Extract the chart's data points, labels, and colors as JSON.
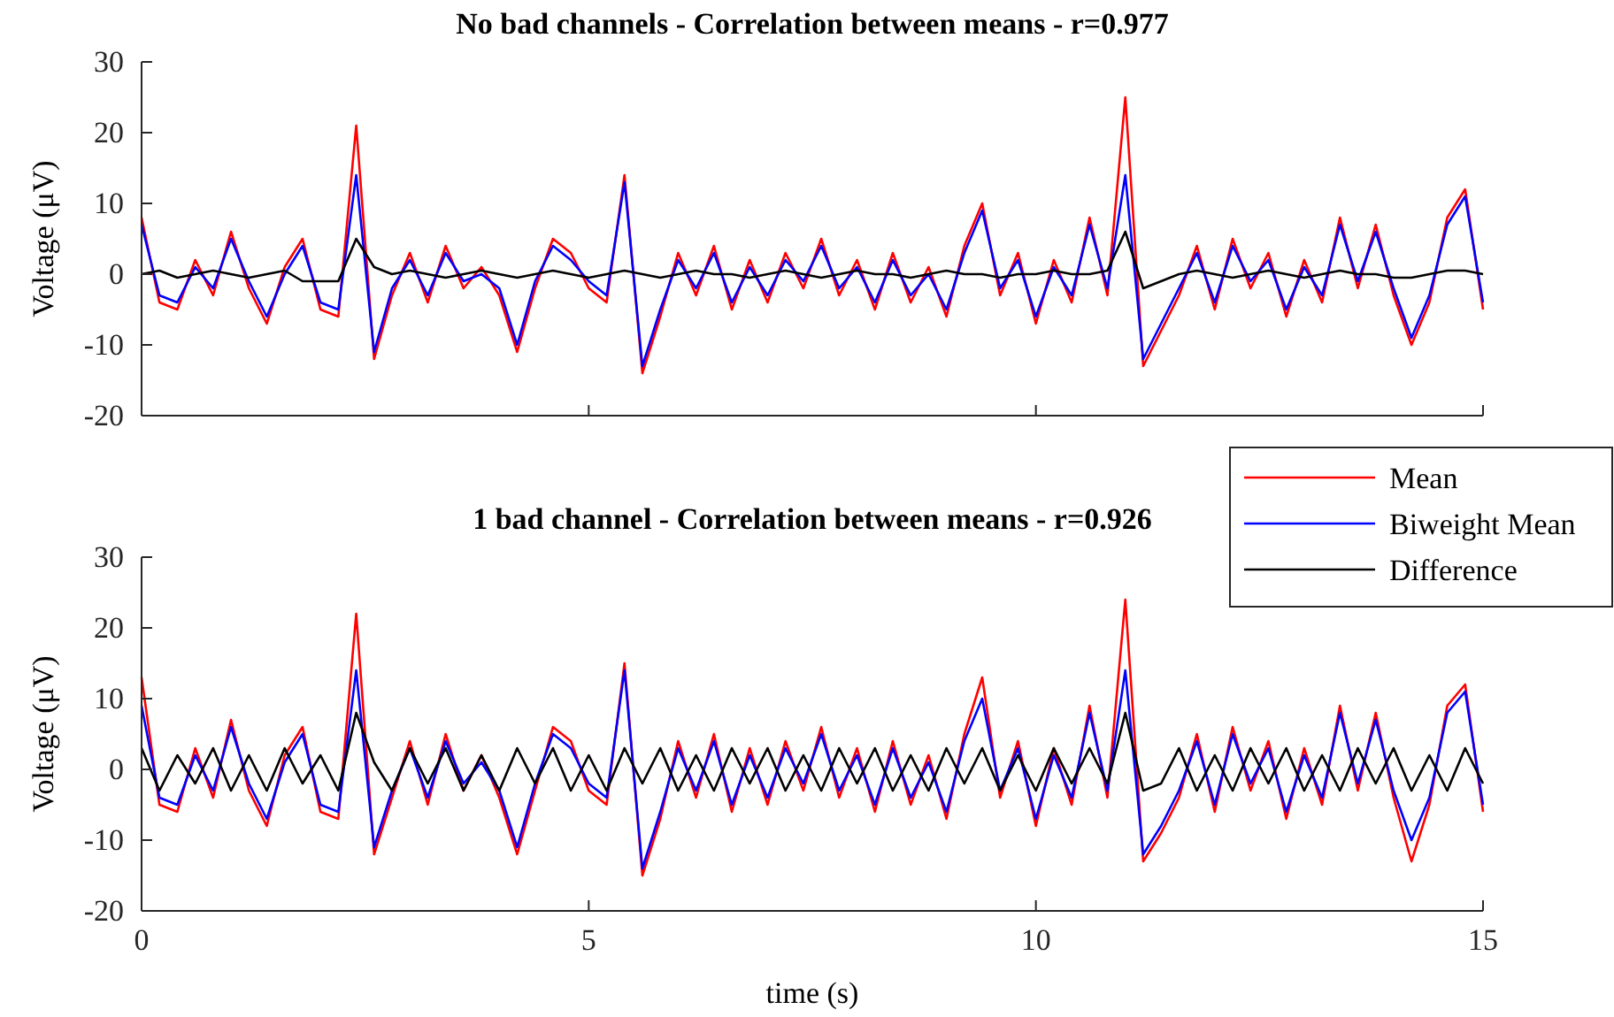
{
  "chart_data": [
    {
      "type": "line",
      "title": "No bad channels - Correlation between means - r=0.977",
      "ylabel": "Voltage (μV)",
      "x": [
        0,
        0.2,
        0.4,
        0.6,
        0.8,
        1,
        1.2,
        1.4,
        1.6,
        1.8,
        2,
        2.2,
        2.4,
        2.6,
        2.8,
        3,
        3.2,
        3.4,
        3.6,
        3.8,
        4,
        4.2,
        4.4,
        4.6,
        4.8,
        5,
        5.2,
        5.4,
        5.6,
        5.8,
        6,
        6.2,
        6.4,
        6.6,
        6.8,
        7,
        7.2,
        7.4,
        7.6,
        7.8,
        8,
        8.2,
        8.4,
        8.6,
        8.8,
        9,
        9.2,
        9.4,
        9.6,
        9.8,
        10,
        10.2,
        10.4,
        10.6,
        10.8,
        11,
        11.2,
        11.4,
        11.6,
        11.8,
        12,
        12.2,
        12.4,
        12.6,
        12.8,
        13,
        13.2,
        13.4,
        13.6,
        13.8,
        14,
        14.2,
        14.4,
        14.6,
        14.8,
        15
      ],
      "xlim": [
        0,
        15
      ],
      "xticks": [
        0,
        5,
        10,
        15
      ],
      "ylim": [
        -20,
        30
      ],
      "yticks": [
        -20,
        -10,
        0,
        10,
        20,
        30
      ],
      "tick_labels": "y",
      "series": [
        {
          "color": "#ff0000",
          "values": [
            8,
            -4,
            -5,
            2,
            -3,
            6,
            -2,
            -7,
            1,
            5,
            -5,
            -6,
            21,
            -12,
            -3,
            3,
            -4,
            4,
            -2,
            1,
            -3,
            -11,
            -2,
            5,
            3,
            -2,
            -4,
            14,
            -14,
            -6,
            3,
            -3,
            4,
            -5,
            2,
            -4,
            3,
            -2,
            5,
            -3,
            2,
            -5,
            3,
            -4,
            1,
            -6,
            4,
            10,
            -3,
            3,
            -7,
            2,
            -4,
            8,
            -3,
            25,
            -13,
            -8,
            -3,
            4,
            -5,
            5,
            -2,
            3,
            -6,
            2,
            -4,
            8,
            -2,
            7,
            -3,
            -10,
            -4,
            8,
            12,
            -5
          ]
        },
        {
          "color": "#0000ff",
          "values": [
            7,
            -3,
            -4,
            1,
            -2,
            5,
            -1,
            -6,
            0,
            4,
            -4,
            -5,
            14,
            -11,
            -2,
            2,
            -3,
            3,
            -1,
            0,
            -2,
            -10,
            -1,
            4,
            2,
            -1,
            -3,
            13,
            -13,
            -5,
            2,
            -2,
            3,
            -4,
            1,
            -3,
            2,
            -1,
            4,
            -2,
            1,
            -4,
            2,
            -3,
            0,
            -5,
            3,
            9,
            -2,
            2,
            -6,
            1,
            -3,
            7,
            -2,
            14,
            -12,
            -7,
            -2,
            3,
            -4,
            4,
            -1,
            2,
            -5,
            1,
            -3,
            7,
            -1,
            6,
            -2,
            -9,
            -3,
            7,
            11,
            -4
          ]
        },
        {
          "color": "#000000",
          "values": [
            0,
            0.5,
            -0.5,
            0,
            0.5,
            0,
            -0.5,
            0,
            0.5,
            -1,
            -1,
            -1,
            5,
            1,
            0,
            0.5,
            0,
            -0.5,
            0,
            0.5,
            0,
            -0.5,
            0,
            0.5,
            0,
            -0.5,
            0,
            0.5,
            0,
            -0.5,
            0,
            0.5,
            0,
            0,
            -0.5,
            0,
            0.5,
            0,
            -0.5,
            0,
            0.5,
            0,
            0,
            -0.5,
            0,
            0.5,
            0,
            0,
            -0.5,
            0,
            0,
            0.5,
            0,
            0,
            0.5,
            6,
            -2,
            -1,
            0,
            0.5,
            0,
            -0.5,
            0,
            0.5,
            0,
            -0.5,
            0,
            0.5,
            0,
            0,
            -0.5,
            -0.5,
            0,
            0.5,
            0.5,
            0
          ]
        }
      ]
    },
    {
      "type": "line",
      "title": "1 bad channel - Correlation between means - r=0.926",
      "xlabel": "time (s)",
      "ylabel": "Voltage (μV)",
      "x": [
        0,
        0.2,
        0.4,
        0.6,
        0.8,
        1,
        1.2,
        1.4,
        1.6,
        1.8,
        2,
        2.2,
        2.4,
        2.6,
        2.8,
        3,
        3.2,
        3.4,
        3.6,
        3.8,
        4,
        4.2,
        4.4,
        4.6,
        4.8,
        5,
        5.2,
        5.4,
        5.6,
        5.8,
        6,
        6.2,
        6.4,
        6.6,
        6.8,
        7,
        7.2,
        7.4,
        7.6,
        7.8,
        8,
        8.2,
        8.4,
        8.6,
        8.8,
        9,
        9.2,
        9.4,
        9.6,
        9.8,
        10,
        10.2,
        10.4,
        10.6,
        10.8,
        11,
        11.2,
        11.4,
        11.6,
        11.8,
        12,
        12.2,
        12.4,
        12.6,
        12.8,
        13,
        13.2,
        13.4,
        13.6,
        13.8,
        14,
        14.2,
        14.4,
        14.6,
        14.8,
        15
      ],
      "xlim": [
        0,
        15
      ],
      "xticks": [
        0,
        5,
        10,
        15
      ],
      "ylim": [
        -20,
        30
      ],
      "yticks": [
        -20,
        -10,
        0,
        10,
        20,
        30
      ],
      "legend": "top right",
      "series": [
        {
          "name": "Mean",
          "color": "#ff0000",
          "values": [
            13,
            -5,
            -6,
            3,
            -4,
            7,
            -3,
            -8,
            2,
            6,
            -6,
            -7,
            22,
            -12,
            -4,
            4,
            -5,
            5,
            -3,
            2,
            -4,
            -12,
            -3,
            6,
            4,
            -3,
            -5,
            15,
            -15,
            -7,
            4,
            -4,
            5,
            -6,
            3,
            -5,
            4,
            -3,
            6,
            -4,
            3,
            -6,
            4,
            -5,
            2,
            -7,
            5,
            13,
            -4,
            4,
            -8,
            3,
            -5,
            9,
            -4,
            24,
            -13,
            -9,
            -4,
            5,
            -6,
            6,
            -3,
            4,
            -7,
            3,
            -5,
            9,
            -3,
            8,
            -4,
            -13,
            -5,
            9,
            12,
            -6
          ]
        },
        {
          "name": "Biweight Mean",
          "color": "#0000ff",
          "values": [
            9,
            -4,
            -5,
            2,
            -3,
            6,
            -2,
            -7,
            1,
            5,
            -5,
            -6,
            14,
            -11,
            -3,
            3,
            -4,
            4,
            -2,
            1,
            -3,
            -11,
            -2,
            5,
            3,
            -2,
            -4,
            14,
            -14,
            -6,
            3,
            -3,
            4,
            -5,
            2,
            -4,
            3,
            -2,
            5,
            -3,
            2,
            -5,
            3,
            -4,
            1,
            -6,
            4,
            10,
            -3,
            3,
            -7,
            2,
            -4,
            8,
            -3,
            14,
            -12,
            -8,
            -3,
            4,
            -5,
            5,
            -2,
            3,
            -6,
            2,
            -4,
            8,
            -2,
            7,
            -3,
            -10,
            -4,
            8,
            11,
            -5
          ]
        },
        {
          "name": "Difference",
          "color": "#000000",
          "values": [
            3,
            -3,
            2,
            -2,
            3,
            -3,
            2,
            -3,
            3,
            -2,
            2,
            -3,
            8,
            1,
            -3,
            3,
            -2,
            3,
            -3,
            2,
            -3,
            3,
            -2,
            3,
            -3,
            2,
            -3,
            3,
            -2,
            3,
            -3,
            2,
            -3,
            3,
            -2,
            3,
            -3,
            2,
            -3,
            3,
            -2,
            3,
            -3,
            2,
            -3,
            3,
            -2,
            3,
            -3,
            2,
            -3,
            3,
            -2,
            3,
            -2,
            8,
            -3,
            -2,
            3,
            -3,
            2,
            -3,
            3,
            -2,
            3,
            -3,
            2,
            -3,
            3,
            -2,
            3,
            -3,
            2,
            -3,
            3,
            -2
          ]
        }
      ]
    }
  ]
}
